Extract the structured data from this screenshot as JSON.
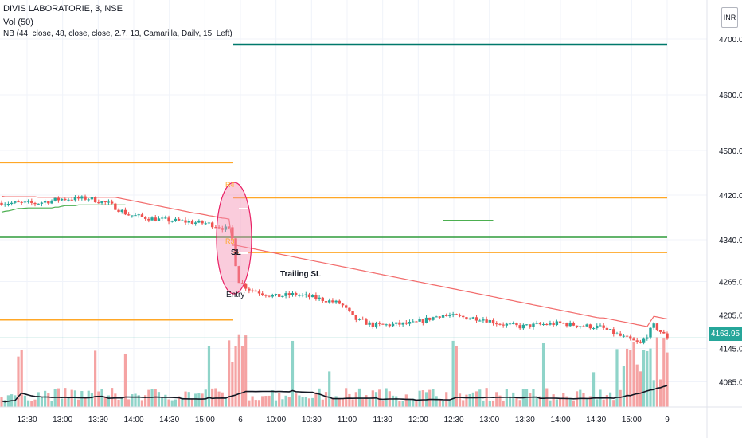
{
  "legend": {
    "title": "DIVIS LABORATORIE, 3, NSE",
    "volume": "Vol (50)",
    "indicator": "NB (44, close, 48, close, close, 2.7, 13, Camarilla, Daily, 15, Left)"
  },
  "currency": "INR",
  "last_price_label": "4163.95",
  "colors": {
    "up": "#26a69a",
    "down": "#ef5350",
    "stop_line": "#f26b6b",
    "support_line": "#4caf50",
    "pivot_orange": "#ffa726",
    "pivot_dark_green": "#00796b",
    "pivot_green": "#2e9c3a",
    "volume_up": "#8fd4c9",
    "volume_down": "#f5a3a3",
    "volume_ma": "#131722",
    "highlight_fill": "#f48fb1",
    "highlight_stroke": "#e91e63",
    "last_price_line": "#26a69a"
  },
  "chart_data": {
    "type": "candlestick",
    "title": "DIVIS LABORATORIE, 3, NSE",
    "ylim": [
      4040,
      4770
    ],
    "y_ticks": [
      "4700.00",
      "4600.00",
      "4500.00",
      "4420.00",
      "4340.00",
      "4265.00",
      "4205.00",
      "4145.00",
      "4085.00"
    ],
    "x_ticks": [
      "12:30",
      "13:00",
      "13:30",
      "14:00",
      "14:30",
      "15:00",
      "6",
      "10:00",
      "10:30",
      "11:00",
      "11:30",
      "12:00",
      "12:30",
      "13:00",
      "13:30",
      "14:00",
      "14:30",
      "15:00",
      "9"
    ],
    "last_price": 4163.95,
    "close_path": [
      {
        "t": 0.0,
        "v": 4406
      },
      {
        "t": 0.05,
        "v": 4405
      },
      {
        "t": 0.09,
        "v": 4413
      },
      {
        "t": 0.13,
        "v": 4414
      },
      {
        "t": 0.16,
        "v": 4405
      },
      {
        "t": 0.19,
        "v": 4385
      },
      {
        "t": 0.23,
        "v": 4377
      },
      {
        "t": 0.27,
        "v": 4373
      },
      {
        "t": 0.31,
        "v": 4369
      },
      {
        "t": 0.345,
        "v": 4357
      },
      {
        "t": 0.355,
        "v": 4268
      },
      {
        "t": 0.37,
        "v": 4252
      },
      {
        "t": 0.41,
        "v": 4238
      },
      {
        "t": 0.44,
        "v": 4242
      },
      {
        "t": 0.47,
        "v": 4236
      },
      {
        "t": 0.51,
        "v": 4225
      },
      {
        "t": 0.53,
        "v": 4198
      },
      {
        "t": 0.56,
        "v": 4186
      },
      {
        "t": 0.59,
        "v": 4188
      },
      {
        "t": 0.62,
        "v": 4190
      },
      {
        "t": 0.66,
        "v": 4205
      },
      {
        "t": 0.69,
        "v": 4201
      },
      {
        "t": 0.72,
        "v": 4199
      },
      {
        "t": 0.75,
        "v": 4189
      },
      {
        "t": 0.78,
        "v": 4184
      },
      {
        "t": 0.81,
        "v": 4188
      },
      {
        "t": 0.84,
        "v": 4190
      },
      {
        "t": 0.87,
        "v": 4186
      },
      {
        "t": 0.9,
        "v": 4183
      },
      {
        "t": 0.93,
        "v": 4167
      },
      {
        "t": 0.96,
        "v": 4153
      },
      {
        "t": 0.98,
        "v": 4186
      },
      {
        "t": 1.0,
        "v": 4164
      }
    ],
    "series": [
      {
        "name": "Trailing SL",
        "role": "stop_line"
      },
      {
        "role": "support_line"
      }
    ],
    "levels": [
      {
        "value": 4690,
        "span": "right",
        "color": "pivot_dark_green",
        "width": 2.5
      },
      {
        "value": 4478,
        "span": "left",
        "color": "pivot_orange",
        "width": 1.5
      },
      {
        "value": 4415,
        "span": "right",
        "color": "pivot_orange",
        "width": 1.5
      },
      {
        "value": 4345,
        "span": "full",
        "color": "pivot_green",
        "width": 2.5
      },
      {
        "value": 4317,
        "span": "right",
        "color": "pivot_orange",
        "width": 1.5
      },
      {
        "value": 4196,
        "span": "left",
        "color": "pivot_orange",
        "width": 1.5
      }
    ],
    "annotations": {
      "r4": "R4",
      "r3": "R3",
      "sl": "SL",
      "entry": "Entry",
      "trailing_sl": "Trailing SL"
    },
    "grid": true,
    "volume": true
  }
}
